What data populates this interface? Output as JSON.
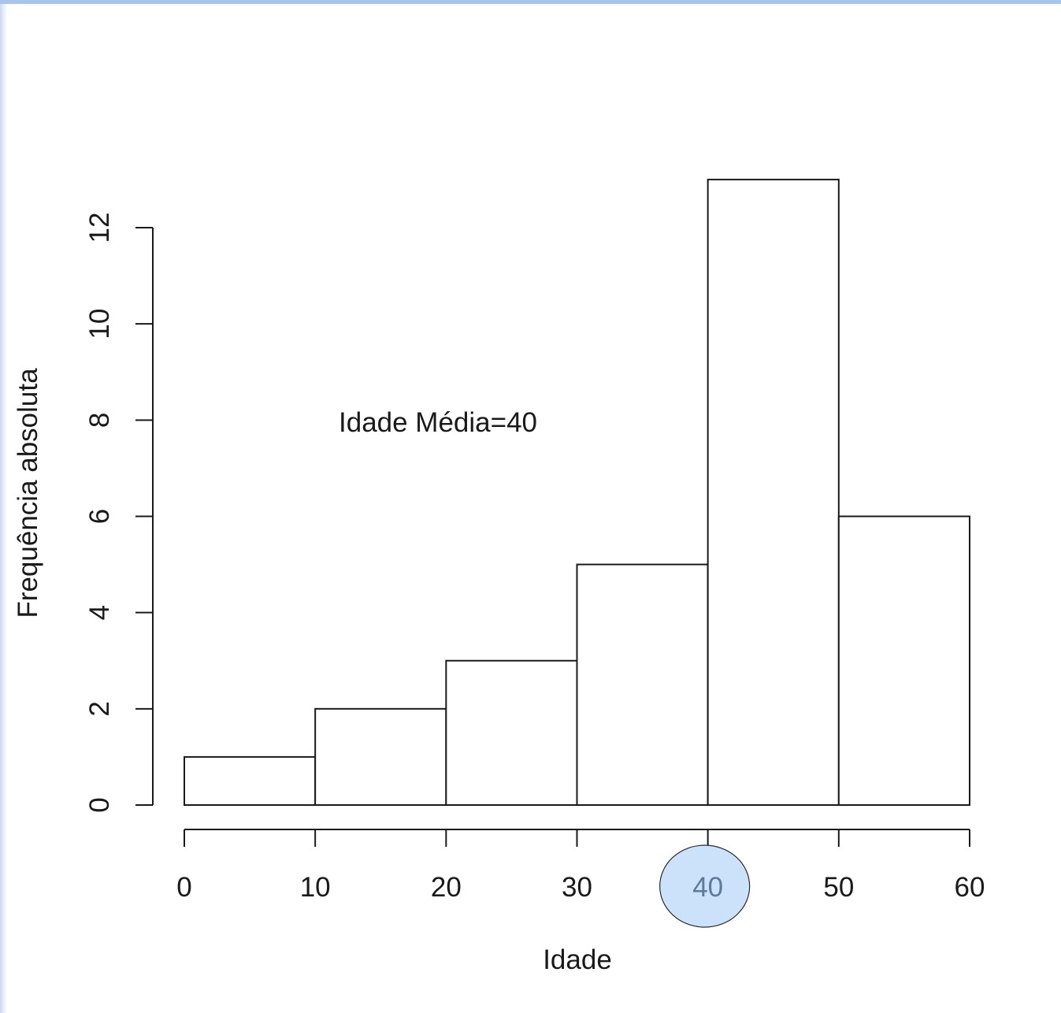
{
  "chart_data": {
    "type": "bar",
    "subtype": "histogram",
    "title": "",
    "xlabel": "Idade",
    "ylabel": "Frequência absoluta",
    "bins": [
      {
        "from": 0,
        "to": 10,
        "count": 1
      },
      {
        "from": 10,
        "to": 20,
        "count": 2
      },
      {
        "from": 20,
        "to": 30,
        "count": 3
      },
      {
        "from": 30,
        "to": 40,
        "count": 5
      },
      {
        "from": 40,
        "to": 50,
        "count": 13
      },
      {
        "from": 50,
        "to": 60,
        "count": 6
      }
    ],
    "xlim": [
      0,
      60
    ],
    "ylim": [
      0,
      13
    ],
    "x_ticks": [
      "0",
      "10",
      "20",
      "30",
      "40",
      "50",
      "60"
    ],
    "y_ticks": [
      "0",
      "2",
      "4",
      "6",
      "8",
      "10",
      "12"
    ],
    "annotation": "Idade Média=40",
    "highlighted_x_tick": "40",
    "highlight_color": "#cce2fb",
    "highlight_stroke": "#2b2b2b",
    "grid": false,
    "bar_fill": "#ffffff",
    "bar_stroke": "#1a1a1a"
  }
}
